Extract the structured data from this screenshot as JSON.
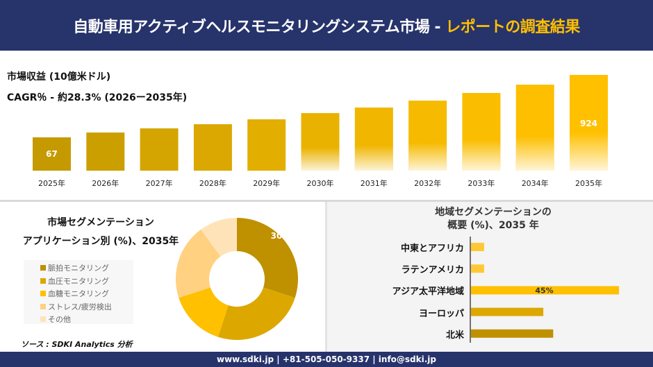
{
  "header": {
    "title_main": "自動車用アクティブヘルスモニタリングシステム市場 -",
    "title_accent": "レポートの調査結果"
  },
  "revenue": {
    "label": "市場収益 (10億米ドル)",
    "cagr": "CAGR％ - 約28.3% (2026ー2035年)"
  },
  "chart_data": [
    {
      "type": "bar",
      "categories": [
        "2025年",
        "2026年",
        "2027年",
        "2028年",
        "2029年",
        "2030年",
        "2031年",
        "2032年",
        "2033年",
        "2034年",
        "2035年"
      ],
      "values": [
        67,
        133,
        190,
        247,
        314,
        400,
        476,
        571,
        676,
        790,
        924
      ],
      "data_labels": {
        "0": "67",
        "10": "924"
      },
      "ylabel": "市場収益 (10億米ドル)",
      "grid": false
    },
    {
      "type": "pie",
      "title": "市場セグメンテーション アプリケーション別 (%)、2035年",
      "categories": [
        "脈拍モニタリング",
        "血圧モニタリング",
        "血糖モニタリング",
        "ストレス/疲労検出",
        "その他"
      ],
      "values": [
        30,
        25,
        15,
        20,
        10
      ],
      "colors": [
        "#BF9000",
        "#DCA800",
        "#FFC000",
        "#FFD180",
        "#FFE3B8"
      ],
      "data_labels": {
        "0": "30%"
      },
      "legend": "left",
      "donut": true
    },
    {
      "type": "bar",
      "orientation": "horizontal",
      "title": "地域セグメンテーションの 概要 (%)、2035 年",
      "categories": [
        "中東とアフリカ",
        "ラテンアメリカ",
        "アジア太平洋地域",
        "ヨーロッパ",
        "北米"
      ],
      "values": [
        4,
        4,
        45,
        22,
        25
      ],
      "colors": [
        "#FFC935",
        "#FFC935",
        "#FFC000",
        "#DCA800",
        "#BF9000"
      ],
      "data_labels": {
        "2": "45%"
      }
    }
  ],
  "segment": {
    "title1": "市場セグメンテーション",
    "title2": "アプリケーション別 (%)、2035年"
  },
  "region": {
    "title1": "地域セグメンテーションの",
    "title2": "概要 (%)、2035 年"
  },
  "source": "ソース : SDKI Analytics 分析",
  "footer": "www.sdki.jp | +81-505-050-9337 | info@sdki.jp"
}
